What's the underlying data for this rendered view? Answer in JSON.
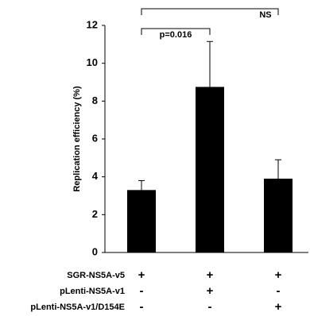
{
  "chart_data": {
    "type": "bar",
    "ylabel": "Replication efficiency (%)",
    "categories": [
      null,
      null,
      null
    ],
    "values": [
      3.3,
      8.75,
      3.9
    ],
    "errors": [
      0.5,
      2.4,
      1.0
    ],
    "color": "#000000",
    "ylim": [
      0,
      12
    ],
    "yticks": [
      0,
      2,
      4,
      6,
      8,
      10,
      12
    ],
    "annotations": [
      {
        "text": "p=0.016",
        "between": [
          0,
          1
        ]
      },
      {
        "text": "NS",
        "between": [
          0,
          2
        ]
      }
    ],
    "conditions": [
      {
        "name": "SGR-NS5A-v5",
        "signs": [
          "+",
          "+",
          "+"
        ]
      },
      {
        "name": "pLenti-NS5A-v1",
        "signs": [
          "-",
          "+",
          "-"
        ]
      },
      {
        "name": "pLenti-NS5A-v1/D154E",
        "signs": [
          "-",
          "-",
          "+"
        ]
      }
    ]
  }
}
